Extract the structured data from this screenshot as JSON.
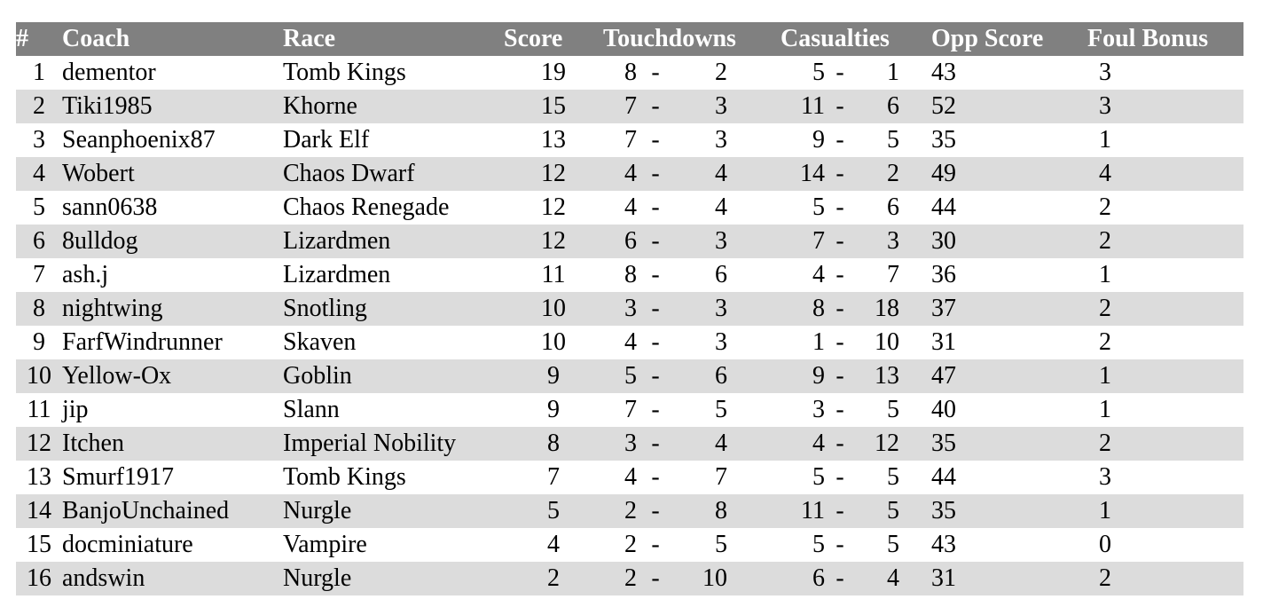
{
  "table": {
    "headers": {
      "rank": "#",
      "coach": "Coach",
      "race": "Race",
      "score": "Score",
      "touchdowns": "Touchdowns",
      "casualties": "Casualties",
      "opp_score": "Opp Score",
      "foul_bonus": "Foul Bonus"
    },
    "separator": "-",
    "rows": [
      {
        "rank": "1",
        "coach": "dementor",
        "race": "Tomb Kings",
        "score": "19",
        "td_for": "8",
        "td_against": "2",
        "cas_for": "5",
        "cas_against": "1",
        "opp_score": "43",
        "foul_bonus": "3"
      },
      {
        "rank": "2",
        "coach": "Tiki1985",
        "race": "Khorne",
        "score": "15",
        "td_for": "7",
        "td_against": "3",
        "cas_for": "11",
        "cas_against": "6",
        "opp_score": "52",
        "foul_bonus": "3"
      },
      {
        "rank": "3",
        "coach": "Seanphoenix87",
        "race": "Dark Elf",
        "score": "13",
        "td_for": "7",
        "td_against": "3",
        "cas_for": "9",
        "cas_against": "5",
        "opp_score": "35",
        "foul_bonus": "1"
      },
      {
        "rank": "4",
        "coach": "Wobert",
        "race": "Chaos Dwarf",
        "score": "12",
        "td_for": "4",
        "td_against": "4",
        "cas_for": "14",
        "cas_against": "2",
        "opp_score": "49",
        "foul_bonus": "4"
      },
      {
        "rank": "5",
        "coach": "sann0638",
        "race": "Chaos Renegade",
        "score": "12",
        "td_for": "4",
        "td_against": "4",
        "cas_for": "5",
        "cas_against": "6",
        "opp_score": "44",
        "foul_bonus": "2"
      },
      {
        "rank": "6",
        "coach": "8ulldog",
        "race": "Lizardmen",
        "score": "12",
        "td_for": "6",
        "td_against": "3",
        "cas_for": "7",
        "cas_against": "3",
        "opp_score": "30",
        "foul_bonus": "2"
      },
      {
        "rank": "7",
        "coach": "ash.j",
        "race": "Lizardmen",
        "score": "11",
        "td_for": "8",
        "td_against": "6",
        "cas_for": "4",
        "cas_against": "7",
        "opp_score": "36",
        "foul_bonus": "1"
      },
      {
        "rank": "8",
        "coach": "nightwing",
        "race": "Snotling",
        "score": "10",
        "td_for": "3",
        "td_against": "3",
        "cas_for": "8",
        "cas_against": "18",
        "opp_score": "37",
        "foul_bonus": "2"
      },
      {
        "rank": "9",
        "coach": "FarfWindrunner",
        "race": "Skaven",
        "score": "10",
        "td_for": "4",
        "td_against": "3",
        "cas_for": "1",
        "cas_against": "10",
        "opp_score": "31",
        "foul_bonus": "2"
      },
      {
        "rank": "10",
        "coach": "Yellow-Ox",
        "race": "Goblin",
        "score": "9",
        "td_for": "5",
        "td_against": "6",
        "cas_for": "9",
        "cas_against": "13",
        "opp_score": "47",
        "foul_bonus": "1"
      },
      {
        "rank": "11",
        "coach": "jip",
        "race": "Slann",
        "score": "9",
        "td_for": "7",
        "td_against": "5",
        "cas_for": "3",
        "cas_against": "5",
        "opp_score": "40",
        "foul_bonus": "1"
      },
      {
        "rank": "12",
        "coach": "Itchen",
        "race": "Imperial Nobility",
        "score": "8",
        "td_for": "3",
        "td_against": "4",
        "cas_for": "4",
        "cas_against": "12",
        "opp_score": "35",
        "foul_bonus": "2"
      },
      {
        "rank": "13",
        "coach": "Smurf1917",
        "race": "Tomb Kings",
        "score": "7",
        "td_for": "4",
        "td_against": "7",
        "cas_for": "5",
        "cas_against": "5",
        "opp_score": "44",
        "foul_bonus": "3"
      },
      {
        "rank": "14",
        "coach": "BanjoUnchained",
        "race": "Nurgle",
        "score": "5",
        "td_for": "2",
        "td_against": "8",
        "cas_for": "11",
        "cas_against": "5",
        "opp_score": "35",
        "foul_bonus": "1"
      },
      {
        "rank": "15",
        "coach": "docminiature",
        "race": "Vampire",
        "score": "4",
        "td_for": "2",
        "td_against": "5",
        "cas_for": "5",
        "cas_against": "5",
        "opp_score": "43",
        "foul_bonus": "0"
      },
      {
        "rank": "16",
        "coach": "andswin",
        "race": "Nurgle",
        "score": "2",
        "td_for": "2",
        "td_against": "10",
        "cas_for": "6",
        "cas_against": "4",
        "opp_score": "31",
        "foul_bonus": "2"
      }
    ]
  }
}
